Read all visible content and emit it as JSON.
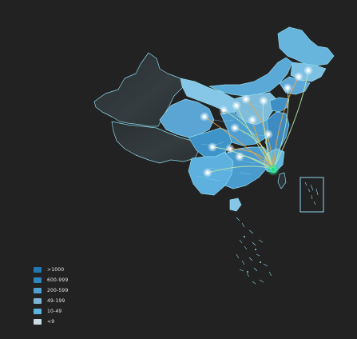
{
  "map": {
    "colors": {
      "background": "#222222",
      "border": "#8fd8ec",
      "no_data": "#2e3436",
      "flow_line_warm": "#f2a541",
      "flow_line_cool": "#bfe6a8",
      "flow_target": "#22dd88",
      "source_marker": "#ffffff"
    },
    "flow_target_region": "Fujian",
    "regions": [
      {
        "name": "Heilongjiang",
        "color": "#67b4dc"
      },
      {
        "name": "Jilin",
        "color": "#7cc0e4"
      },
      {
        "name": "Liaoning",
        "color": "#5ea8d8"
      },
      {
        "name": "Inner Mongolia",
        "color": "#5aa9d6"
      },
      {
        "name": "Xinjiang",
        "color": "#2e3436"
      },
      {
        "name": "Tibet",
        "color": "#2e3436"
      },
      {
        "name": "Qinghai",
        "color": "#5aa5d3"
      },
      {
        "name": "Gansu",
        "color": "#86c6e6"
      },
      {
        "name": "Sichuan",
        "color": "#3e94c8"
      },
      {
        "name": "North China core",
        "color": "#7fbcdc"
      },
      {
        "name": "Central",
        "color": "#4f9fd0"
      },
      {
        "name": "Southwest",
        "color": "#5eb0de"
      },
      {
        "name": "South",
        "color": "#4a9ccf"
      },
      {
        "name": "Shandong",
        "color": "#3f8fc4"
      },
      {
        "name": "East coast",
        "color": "#3d8bc2"
      },
      {
        "name": "Fujian",
        "color": "#62b6e0"
      },
      {
        "name": "Hainan",
        "color": "#86c6e6"
      },
      {
        "name": "Taiwan",
        "color": "#2b3335"
      }
    ]
  },
  "legend": [
    {
      "label": ">1000",
      "color": "#1f78b4"
    },
    {
      "label": "600-999",
      "color": "#2f86bf"
    },
    {
      "label": "200-599",
      "color": "#4f9fd0"
    },
    {
      "label": "49-199",
      "color": "#7fb3d5"
    },
    {
      "label": "10-49",
      "color": "#5ab4dd"
    },
    {
      "label": "<9",
      "color": "#c9dde3"
    }
  ]
}
